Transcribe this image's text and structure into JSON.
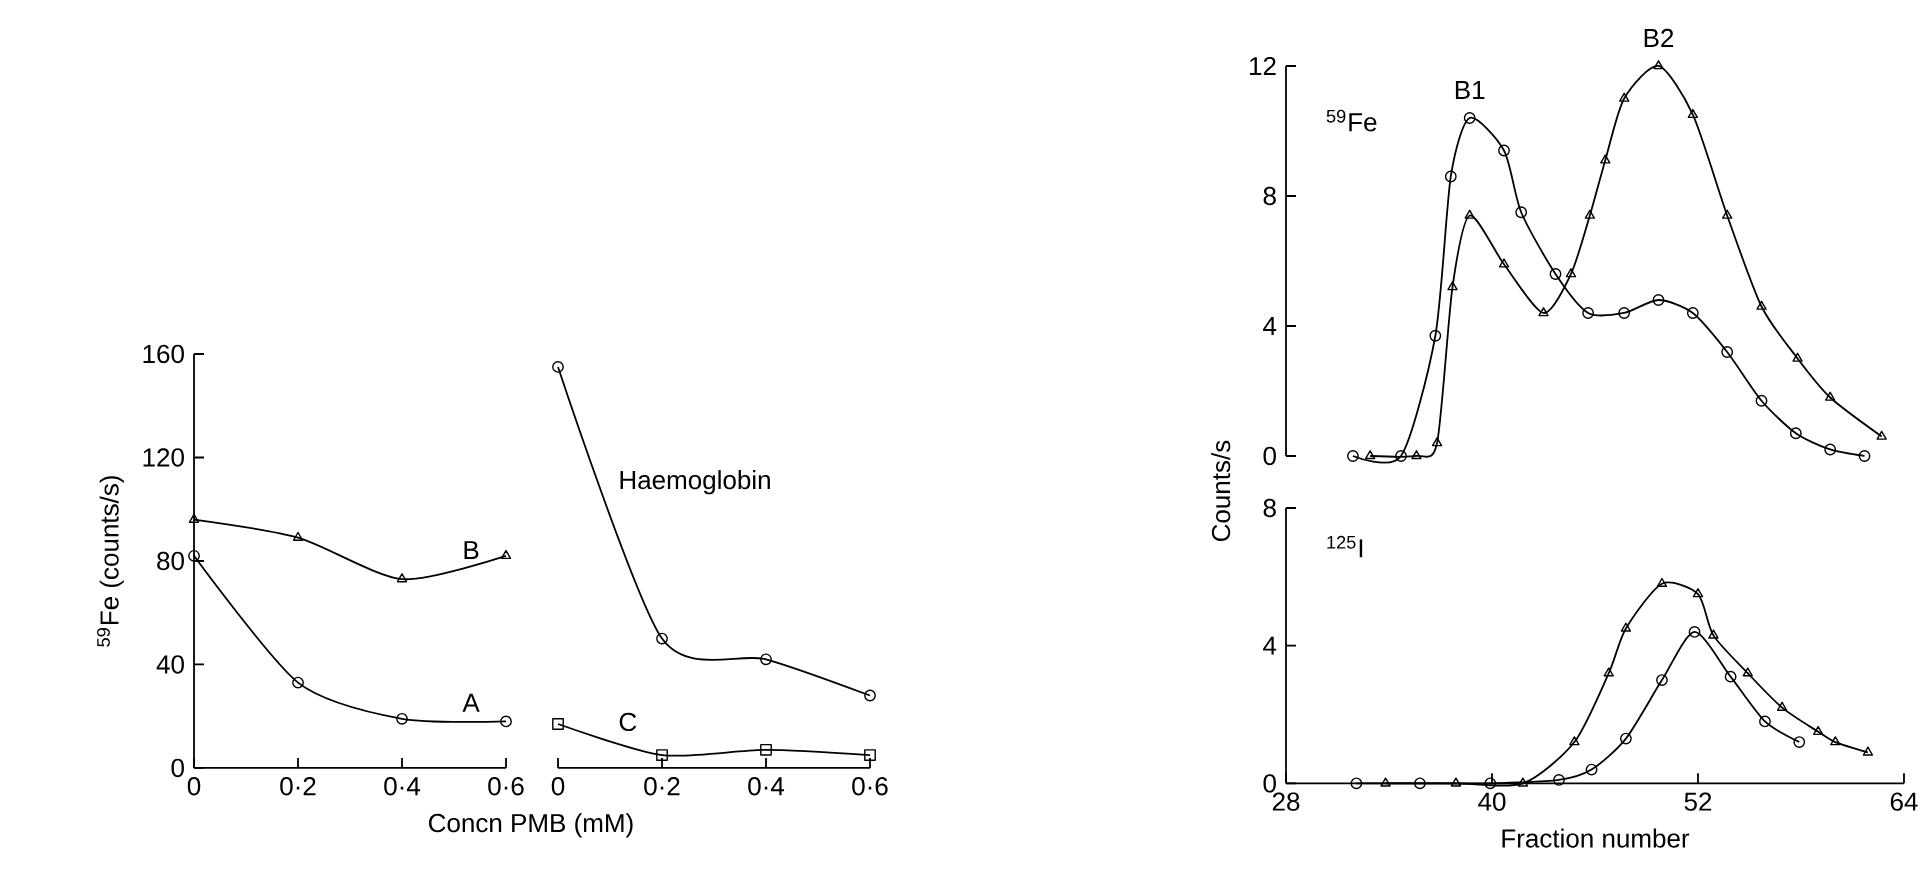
{
  "chart_data": [
    {
      "type": "line",
      "xlabel": "Concn PMB (mM)",
      "ylabel": "$^{59}$Fe  (counts/s)",
      "categories": [
        "0",
        "0·2",
        "0·4",
        "0·6"
      ],
      "ylim": [
        0,
        160
      ],
      "yticks": [
        0,
        40,
        80,
        120,
        160
      ],
      "series": [
        {
          "name": "B",
          "color": "#000000",
          "marker": "triangle",
          "values": [
            96,
            89,
            73,
            82
          ]
        },
        {
          "name": "A",
          "color": "#000000",
          "marker": "circle",
          "values": [
            82,
            33,
            19,
            18
          ]
        }
      ]
    },
    {
      "type": "line",
      "categories": [
        "0",
        "0·2",
        "0·4",
        "0·6"
      ],
      "ylim": [
        0,
        160
      ],
      "tick_labels": "x",
      "series": [
        {
          "name": "Haemoglobin",
          "color": "#000000",
          "marker": "circle",
          "values": [
            155,
            50,
            42,
            28
          ]
        },
        {
          "name": "C",
          "color": "#000000",
          "marker": "square",
          "values": [
            17,
            5,
            7,
            5
          ]
        }
      ]
    },
    {
      "type": "line",
      "title": "$^{59}$Fe",
      "ylabel": "Counts/s",
      "xlim": [
        28,
        64
      ],
      "ylim": [
        0,
        12
      ],
      "yticks": [
        0,
        4,
        8,
        12
      ],
      "tick_labels": "y",
      "annotations": [
        {
          "text": "B1",
          "x": 38.7,
          "y": 10.4
        },
        {
          "text": "B2",
          "x": 49.7,
          "y": 12
        }
      ],
      "series": [
        {
          "color": "#000000",
          "marker": "circle",
          "x": [
            31.9,
            34.7,
            36.7,
            37.6,
            38.7,
            40.7,
            41.7,
            43.7,
            45.6,
            47.7,
            49.7,
            51.7,
            53.7,
            55.7,
            57.7,
            59.7,
            61.7
          ],
          "values": [
            0,
            0,
            3.7,
            8.6,
            10.4,
            9.4,
            7.5,
            5.6,
            4.4,
            4.4,
            4.8,
            4.4,
            3.2,
            1.7,
            0.7,
            0.2,
            0
          ]
        },
        {
          "color": "#000000",
          "marker": "triangle",
          "x": [
            32.9,
            35.6,
            36.8,
            37.7,
            38.7,
            40.7,
            43.0,
            44.6,
            45.7,
            46.6,
            47.7,
            49.7,
            51.7,
            53.7,
            55.7,
            57.8,
            59.7,
            62.7
          ],
          "values": [
            0,
            0,
            0.4,
            5.2,
            7.4,
            5.9,
            4.4,
            5.6,
            7.4,
            9.1,
            11.0,
            12.0,
            10.5,
            7.4,
            4.6,
            3.0,
            1.8,
            0.6
          ]
        }
      ]
    },
    {
      "type": "line",
      "title": "$^{125}$I",
      "xlabel": "Fraction number",
      "xlim": [
        28,
        64
      ],
      "ylim": [
        0,
        8
      ],
      "xticks": [
        28,
        40,
        52,
        64
      ],
      "yticks": [
        0,
        4,
        8
      ],
      "series": [
        {
          "color": "#000000",
          "marker": "circle",
          "x": [
            32.1,
            35.8,
            39.9,
            43.9,
            45.8,
            47.8,
            49.9,
            51.8,
            53.9,
            55.9,
            57.9
          ],
          "values": [
            0,
            0,
            0,
            0.1,
            0.4,
            1.3,
            3.0,
            4.4,
            3.1,
            1.8,
            1.2
          ]
        },
        {
          "color": "#000000",
          "marker": "triangle",
          "x": [
            33.8,
            37.9,
            41.8,
            44.8,
            46.8,
            47.8,
            49.9,
            52.0,
            52.9,
            54.9,
            56.9,
            59.0,
            60.0,
            61.9
          ],
          "values": [
            0,
            0,
            0,
            1.2,
            3.2,
            4.5,
            5.8,
            5.5,
            4.3,
            3.2,
            2.2,
            1.5,
            1.2,
            0.9
          ]
        }
      ]
    }
  ]
}
